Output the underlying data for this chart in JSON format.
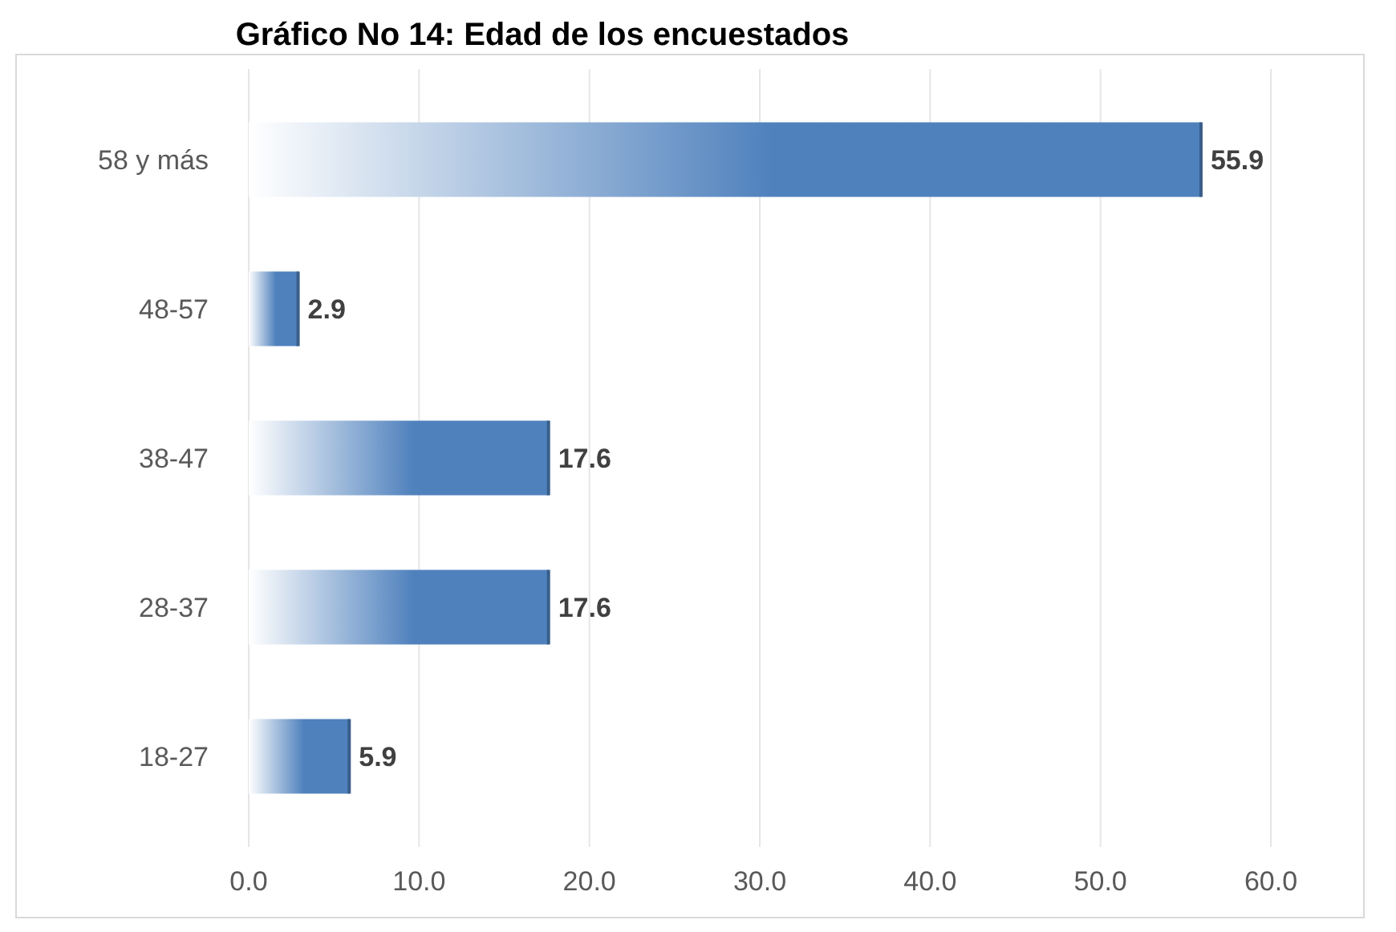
{
  "chart_data": {
    "type": "bar",
    "orientation": "horizontal",
    "title": "Gráfico No 14: Edad de los encuestados",
    "categories": [
      "58 y más",
      "48-57",
      "38-47",
      "28-37",
      "18-27"
    ],
    "values": [
      55.9,
      2.9,
      17.6,
      17.6,
      5.9
    ],
    "color": "#4f81bd",
    "xlim": [
      0,
      60
    ],
    "xticks": [
      {
        "value": 0,
        "label": "0.0"
      },
      {
        "value": 10,
        "label": "10.0"
      },
      {
        "value": 20,
        "label": "20.0"
      },
      {
        "value": 30,
        "label": "30.0"
      },
      {
        "value": 40,
        "label": "40.0"
      },
      {
        "value": 50,
        "label": "50.0"
      },
      {
        "value": 60,
        "label": "60.0"
      }
    ],
    "grid": "x",
    "data_labels": true
  }
}
